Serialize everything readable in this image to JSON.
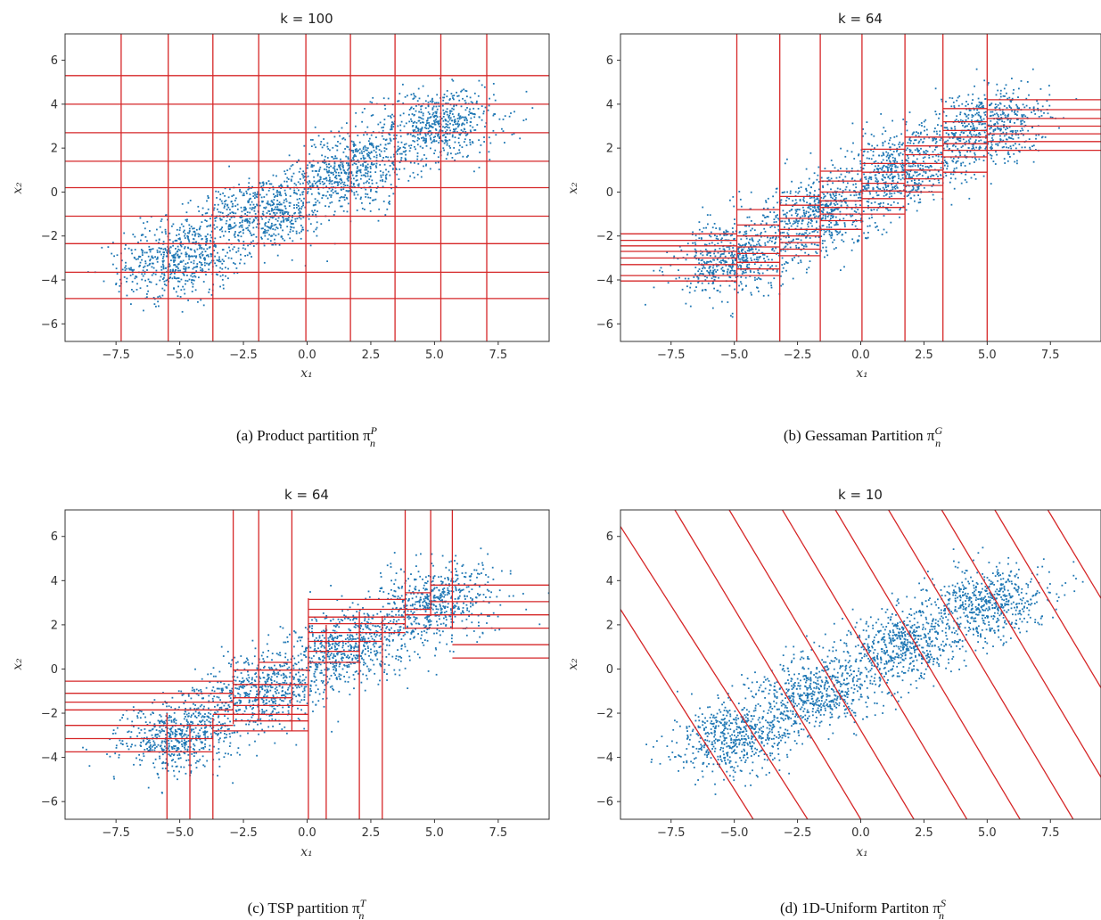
{
  "chart_data": [
    {
      "type": "scatter",
      "title": "k = 100",
      "caption": "(a) Product partition π",
      "caption_sup": "P",
      "caption_sub": "n",
      "xlabel": "x₁",
      "ylabel": "x₂",
      "xlim": [
        -9.5,
        9.5
      ],
      "ylim": [
        -6.8,
        7.2
      ],
      "x_ticks": [
        -7.5,
        -5.0,
        -2.5,
        0.0,
        2.5,
        5.0,
        7.5
      ],
      "x_tick_labels": [
        "−7.5",
        "−5.0",
        "−2.5",
        "0.0",
        "2.5",
        "5.0",
        "7.5"
      ],
      "y_ticks": [
        -6,
        -4,
        -2,
        0,
        2,
        4,
        6
      ],
      "y_tick_labels": [
        "−6",
        "−4",
        "−2",
        "0",
        "2",
        "4",
        "6"
      ],
      "point_color": "#1f77b4",
      "line_color": "#d62728",
      "partition": {
        "kind": "product",
        "vlines": [
          -7.3,
          -5.45,
          -3.7,
          -1.9,
          -0.05,
          1.7,
          3.45,
          5.25,
          7.05
        ],
        "hlines": [
          5.3,
          4.0,
          2.7,
          1.4,
          0.2,
          -1.1,
          -2.35,
          -3.65,
          -4.85
        ]
      }
    },
    {
      "type": "scatter",
      "title": "k = 64",
      "caption": "(b) Gessaman Partition π",
      "caption_sup": "G",
      "caption_sub": "n",
      "xlabel": "x₁",
      "ylabel": "x₂",
      "xlim": [
        -9.5,
        9.5
      ],
      "ylim": [
        -6.8,
        7.2
      ],
      "x_ticks": [
        -7.5,
        -5.0,
        -2.5,
        0.0,
        2.5,
        5.0,
        7.5
      ],
      "x_tick_labels": [
        "−7.5",
        "−5.0",
        "−2.5",
        "0.0",
        "2.5",
        "5.0",
        "7.5"
      ],
      "y_ticks": [
        -6,
        -4,
        -2,
        0,
        2,
        4,
        6
      ],
      "y_tick_labels": [
        "−6",
        "−4",
        "−2",
        "0",
        "2",
        "4",
        "6"
      ],
      "point_color": "#1f77b4",
      "line_color": "#d62728",
      "partition": {
        "kind": "gessaman",
        "vlines": [
          -4.9,
          -3.2,
          -1.6,
          0.05,
          1.75,
          3.25,
          5.0
        ],
        "cells": [
          {
            "x0": -9.5,
            "x1": -4.9,
            "ys": [
              -1.9,
              -2.2,
              -2.45,
              -2.7,
              -3.0,
              -3.3,
              -3.8,
              -4.05
            ]
          },
          {
            "x0": -4.9,
            "x1": -3.2,
            "ys": [
              -0.8,
              -1.5,
              -2.0,
              -2.5,
              -2.8,
              -3.2,
              -3.5,
              -3.8
            ]
          },
          {
            "x0": -3.2,
            "x1": -1.6,
            "ys": [
              -0.2,
              -0.6,
              -1.2,
              -1.7,
              -2.0,
              -2.3,
              -2.6,
              -2.9
            ]
          },
          {
            "x0": -1.6,
            "x1": 0.05,
            "ys": [
              0.95,
              0.5,
              0.0,
              -0.4,
              -0.7,
              -1.0,
              -1.3,
              -1.7
            ]
          },
          {
            "x0": 0.05,
            "x1": 1.75,
            "ys": [
              1.95,
              1.3,
              0.9,
              0.4,
              0.05,
              -0.3,
              -0.7,
              -1.0
            ]
          },
          {
            "x0": 1.75,
            "x1": 3.25,
            "ys": [
              2.5,
              2.1,
              1.7,
              1.3,
              1.0,
              0.6,
              0.3,
              0.0
            ]
          },
          {
            "x0": 3.25,
            "x1": 5.0,
            "ys": [
              3.8,
              3.2,
              2.8,
              2.5,
              2.2,
              1.9,
              1.6,
              0.9
            ]
          },
          {
            "x0": 5.0,
            "x1": 9.5,
            "ys": [
              4.2,
              3.75,
              3.35,
              3.0,
              2.65,
              2.3,
              1.9
            ]
          }
        ]
      }
    },
    {
      "type": "scatter",
      "title": "k = 64",
      "caption": "(c) TSP partition π",
      "caption_sup": "T",
      "caption_sub": "n",
      "xlabel": "x₁",
      "ylabel": "x₂",
      "xlim": [
        -9.5,
        9.5
      ],
      "ylim": [
        -6.8,
        7.2
      ],
      "x_ticks": [
        -7.5,
        -5.0,
        -2.5,
        0.0,
        2.5,
        5.0,
        7.5
      ],
      "x_tick_labels": [
        "−7.5",
        "−5.0",
        "−2.5",
        "0.0",
        "2.5",
        "5.0",
        "7.5"
      ],
      "y_ticks": [
        -6,
        -4,
        -2,
        0,
        2,
        4,
        6
      ],
      "y_tick_labels": [
        "−6",
        "−4",
        "−2",
        "0",
        "2",
        "4",
        "6"
      ],
      "point_color": "#1f77b4",
      "line_color": "#d62728",
      "partition": {
        "kind": "tsp",
        "vsegs": [
          {
            "x": -5.5,
            "y0": -6.8,
            "y1": -2.0
          },
          {
            "x": -4.6,
            "y0": -6.8,
            "y1": -2.5
          },
          {
            "x": -3.7,
            "y0": -6.8,
            "y1": -2.2
          },
          {
            "x": -2.9,
            "y0": -2.5,
            "y1": 7.2
          },
          {
            "x": -1.9,
            "y0": -2.3,
            "y1": 7.2
          },
          {
            "x": -0.6,
            "y0": -2.8,
            "y1": 7.2
          },
          {
            "x": 0.05,
            "y0": -6.8,
            "y1": 3.2
          },
          {
            "x": 0.75,
            "y0": -6.8,
            "y1": 2.0
          },
          {
            "x": 2.05,
            "y0": -6.8,
            "y1": 2.6
          },
          {
            "x": 2.95,
            "y0": -6.8,
            "y1": 2.4
          },
          {
            "x": 3.85,
            "y0": 1.8,
            "y1": 7.2
          },
          {
            "x": 4.85,
            "y0": 2.4,
            "y1": 7.2
          },
          {
            "x": 5.7,
            "y0": 1.8,
            "y1": 7.2
          }
        ],
        "hsegs": [
          {
            "y": -0.55,
            "x0": -9.5,
            "x1": -2.9
          },
          {
            "y": -1.1,
            "x0": -9.5,
            "x1": -2.9
          },
          {
            "y": -1.5,
            "x0": -9.5,
            "x1": -2.9
          },
          {
            "y": -1.85,
            "x0": -9.5,
            "x1": -2.9
          },
          {
            "y": -2.55,
            "x0": -9.5,
            "x1": -2.9
          },
          {
            "y": -3.15,
            "x0": -9.5,
            "x1": -3.7
          },
          {
            "y": -3.75,
            "x0": -9.5,
            "x1": -3.7
          },
          {
            "y": 0.3,
            "x0": -1.9,
            "x1": -0.6
          },
          {
            "y": -0.05,
            "x0": -2.9,
            "x1": 0.05
          },
          {
            "y": -0.7,
            "x0": -2.9,
            "x1": 0.05
          },
          {
            "y": -1.3,
            "x0": -2.9,
            "x1": -0.6
          },
          {
            "y": -1.65,
            "x0": -2.9,
            "x1": 0.05
          },
          {
            "y": -2.05,
            "x0": -3.7,
            "x1": 0.05
          },
          {
            "y": -2.35,
            "x0": -2.9,
            "x1": 0.05
          },
          {
            "y": -2.8,
            "x0": -3.7,
            "x1": 0.05
          },
          {
            "y": 3.15,
            "x0": 0.05,
            "x1": 3.85
          },
          {
            "y": 2.7,
            "x0": 0.05,
            "x1": 4.85
          },
          {
            "y": 2.35,
            "x0": 0.05,
            "x1": 3.85
          },
          {
            "y": 2.05,
            "x0": 0.05,
            "x1": 3.85
          },
          {
            "y": 1.65,
            "x0": 0.05,
            "x1": 3.85
          },
          {
            "y": 1.25,
            "x0": 0.05,
            "x1": 2.95
          },
          {
            "y": 0.8,
            "x0": 0.05,
            "x1": 2.05
          },
          {
            "y": 0.3,
            "x0": 0.05,
            "x1": 2.05
          },
          {
            "y": 3.45,
            "x0": 3.85,
            "x1": 4.85
          },
          {
            "y": 3.8,
            "x0": 4.85,
            "x1": 9.5
          },
          {
            "y": 3.05,
            "x0": 4.85,
            "x1": 9.5
          },
          {
            "y": 2.45,
            "x0": 3.85,
            "x1": 9.5
          },
          {
            "y": 1.85,
            "x0": 3.85,
            "x1": 9.5
          },
          {
            "y": 1.1,
            "x0": 5.7,
            "x1": 9.5
          },
          {
            "y": 0.5,
            "x0": 5.7,
            "x1": 9.5
          }
        ]
      }
    },
    {
      "type": "scatter",
      "title": "k = 10",
      "caption": "(d) 1D-Uniform Partiton π",
      "caption_sup": "S",
      "caption_sub": "n",
      "xlabel": "x₁",
      "ylabel": "x₂",
      "xlim": [
        -9.5,
        9.5
      ],
      "ylim": [
        -6.8,
        7.2
      ],
      "x_ticks": [
        -7.5,
        -5.0,
        -2.5,
        0.0,
        2.5,
        5.0,
        7.5
      ],
      "x_tick_labels": [
        "−7.5",
        "−5.0",
        "−2.5",
        "0.0",
        "2.5",
        "5.0",
        "7.5"
      ],
      "y_ticks": [
        -6,
        -4,
        -2,
        0,
        2,
        4,
        6
      ],
      "y_tick_labels": [
        "−6",
        "−4",
        "−2",
        "0",
        "2",
        "4",
        "6"
      ],
      "point_color": "#1f77b4",
      "line_color": "#d62728",
      "partition": {
        "kind": "slanted",
        "lines": [
          [
            [
              -9.5,
              2.7
            ],
            [
              -4.25,
              -6.8
            ]
          ],
          [
            [
              -9.5,
              6.45
            ],
            [
              -2.1,
              -6.8
            ]
          ],
          [
            [
              -7.35,
              7.2
            ],
            [
              0.0,
              -6.8
            ]
          ],
          [
            [
              -5.2,
              7.2
            ],
            [
              2.1,
              -6.8
            ]
          ],
          [
            [
              -3.1,
              7.2
            ],
            [
              4.2,
              -6.8
            ]
          ],
          [
            [
              -1.0,
              7.2
            ],
            [
              6.3,
              -6.8
            ]
          ],
          [
            [
              1.1,
              7.2
            ],
            [
              8.4,
              -6.8
            ]
          ],
          [
            [
              3.2,
              7.2
            ],
            [
              9.5,
              -4.9
            ]
          ],
          [
            [
              5.3,
              7.2
            ],
            [
              9.5,
              -0.85
            ]
          ],
          [
            [
              7.4,
              7.2
            ],
            [
              9.5,
              3.2
            ]
          ]
        ]
      }
    }
  ]
}
